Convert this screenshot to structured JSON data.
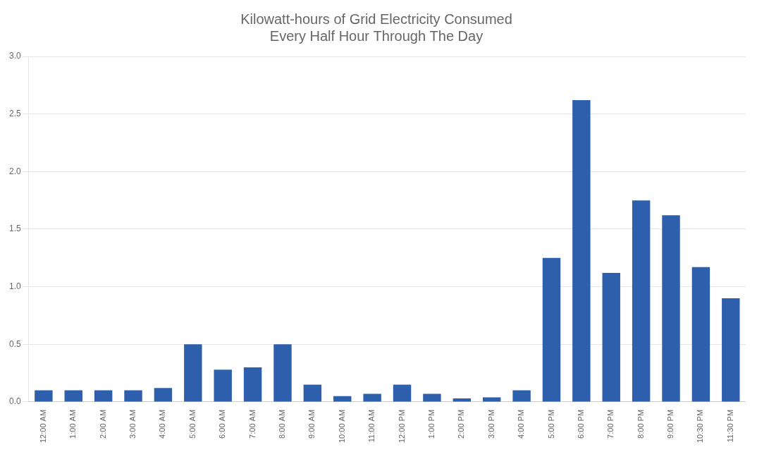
{
  "chart_data": {
    "type": "bar",
    "title": "Kilowatt-hours of Grid Electricity Consumed\nEvery Half Hour Through The Day",
    "categories": [
      "12:00 AM",
      "1:00 AM",
      "2:00 AM",
      "3:00 AM",
      "4:00 AM",
      "5:00 AM",
      "6:00 AM",
      "7:00 AM",
      "8:00 AM",
      "9:00 AM",
      "10:00 AM",
      "11:00 AM",
      "12:00 PM",
      "1:00 PM",
      "2:00 PM",
      "3:00 PM",
      "4:00 PM",
      "5:00 PM",
      "6:00 PM",
      "7:00 PM",
      "8:00 PM",
      "9:00 PM",
      "10:30 PM",
      "11:30 PM"
    ],
    "values": [
      0.1,
      0.1,
      0.1,
      0.1,
      0.12,
      0.5,
      0.28,
      0.3,
      0.5,
      0.15,
      0.05,
      0.07,
      0.15,
      0.07,
      0.03,
      0.04,
      0.1,
      1.25,
      2.62,
      1.12,
      1.75,
      1.62,
      1.17,
      0.9
    ],
    "color": "#2E5FAC",
    "ylim": [
      0,
      3.0
    ],
    "yticks": [
      {
        "value": 0,
        "label": "0.0"
      },
      0.5,
      {
        "value": 1.0,
        "label": "1.0"
      },
      1.5,
      {
        "value": 2.0,
        "label": "2.0"
      },
      2.5,
      {
        "value": 3.0,
        "label": "3.0"
      }
    ],
    "grid": true
  }
}
